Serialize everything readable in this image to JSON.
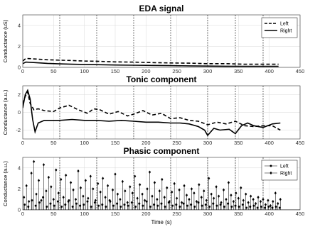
{
  "chart_data": [
    {
      "type": "line",
      "title": "EDA signal",
      "ylabel": "Conductance (uS)",
      "xlim": [
        0,
        450
      ],
      "ylim": [
        0,
        5
      ],
      "xticks": [
        "0",
        "50",
        "100",
        "150",
        "200",
        "250",
        "300",
        "350",
        "400",
        "450"
      ],
      "yticks": [
        "0",
        "2",
        "4"
      ],
      "ytick_values": [
        0,
        2,
        4
      ],
      "grid": true,
      "legend": "top-right",
      "vlines": [
        60,
        120,
        180,
        240,
        300,
        345,
        390
      ],
      "series": [
        {
          "name": "Left",
          "style": "dashed",
          "x": [
            0,
            5,
            20,
            40,
            60,
            80,
            100,
            120,
            150,
            180,
            210,
            240,
            270,
            300,
            330,
            360,
            390,
            415
          ],
          "y": [
            0.6,
            0.85,
            0.8,
            0.72,
            0.68,
            0.65,
            0.6,
            0.58,
            0.52,
            0.5,
            0.45,
            0.42,
            0.4,
            0.35,
            0.35,
            0.3,
            0.3,
            0.3
          ]
        },
        {
          "name": "Right",
          "style": "solid",
          "x": [
            0,
            5,
            20,
            40,
            60,
            80,
            100,
            120,
            150,
            180,
            210,
            240,
            270,
            300,
            330,
            360,
            390,
            415
          ],
          "y": [
            0.35,
            0.5,
            0.45,
            0.38,
            0.33,
            0.3,
            0.28,
            0.26,
            0.22,
            0.2,
            0.18,
            0.16,
            0.14,
            0.12,
            0.11,
            0.1,
            0.1,
            0.1
          ]
        }
      ]
    },
    {
      "type": "line",
      "title": "Tonic component",
      "ylabel": "Conductance (a.u.)",
      "xlim": [
        0,
        450
      ],
      "ylim": [
        -3,
        3
      ],
      "xticks": [
        "0",
        "50",
        "100",
        "150",
        "200",
        "250",
        "300",
        "350",
        "400",
        "450"
      ],
      "yticks": [
        "-2",
        "0",
        "2"
      ],
      "ytick_values": [
        -2,
        0,
        2
      ],
      "grid": true,
      "vlines": [
        60,
        120,
        180,
        240,
        300,
        345,
        390
      ],
      "series": [
        {
          "style": "dashed",
          "x": [
            0,
            4,
            8,
            12,
            18,
            25,
            35,
            50,
            60,
            75,
            90,
            105,
            115,
            125,
            140,
            155,
            170,
            180,
            195,
            210,
            225,
            240,
            255,
            270,
            285,
            300,
            315,
            330,
            345,
            360,
            375,
            390,
            405,
            418
          ],
          "y": [
            1.0,
            1.8,
            2.3,
            1.0,
            0.3,
            0.4,
            0.2,
            0.1,
            0.5,
            0.8,
            0.3,
            -0.1,
            0.4,
            0.3,
            -0.2,
            0.1,
            -0.4,
            -0.2,
            0.2,
            -0.3,
            -0.1,
            -0.7,
            -0.6,
            -0.9,
            -1.0,
            -1.4,
            -1.1,
            -1.3,
            -1.0,
            -1.5,
            -1.6,
            -1.5,
            -1.5,
            -2.0
          ]
        },
        {
          "style": "solid",
          "x": [
            0,
            4,
            8,
            12,
            16,
            20,
            25,
            35,
            50,
            60,
            80,
            100,
            120,
            140,
            160,
            180,
            200,
            220,
            240,
            255,
            270,
            285,
            295,
            300,
            310,
            320,
            335,
            345,
            355,
            365,
            375,
            390,
            405,
            418
          ],
          "y": [
            0.5,
            2.0,
            2.5,
            1.5,
            -0.8,
            -2.2,
            -1.2,
            -0.9,
            -0.9,
            -0.9,
            -0.8,
            -0.9,
            -0.9,
            -1.0,
            -0.9,
            -1.0,
            -1.1,
            -1.1,
            -1.2,
            -1.2,
            -1.3,
            -1.6,
            -2.0,
            -2.6,
            -1.8,
            -2.0,
            -1.9,
            -2.4,
            -1.5,
            -1.2,
            -1.5,
            -1.7,
            -1.3,
            -1.2
          ]
        }
      ]
    },
    {
      "type": "line",
      "title": "Phasic component",
      "ylabel": "Conductance (a.u.)",
      "xlabel": "Time (s)",
      "xlim": [
        0,
        450
      ],
      "ylim": [
        0,
        5
      ],
      "xticks": [
        "0",
        "50",
        "100",
        "150",
        "200",
        "250",
        "300",
        "350",
        "400",
        "450"
      ],
      "yticks": [
        "0",
        "2",
        "4"
      ],
      "ytick_values": [
        0,
        2,
        4
      ],
      "grid": true,
      "legend": "top-right",
      "vlines": [
        60,
        120,
        180,
        240,
        300,
        345,
        390
      ],
      "series": [
        {
          "name": "Left",
          "style": "dot-stem",
          "x": [
            3,
            9,
            15,
            21,
            27,
            33,
            39,
            45,
            51,
            57,
            63,
            69,
            75,
            81,
            87,
            93,
            99,
            105,
            111,
            117,
            123,
            129,
            135,
            141,
            147,
            153,
            159,
            165,
            171,
            177,
            183,
            189,
            195,
            201,
            207,
            213,
            219,
            225,
            231,
            237,
            243,
            249,
            255,
            261,
            267,
            273,
            279,
            285,
            291,
            297,
            303,
            309,
            315,
            321,
            327,
            333,
            339,
            345,
            351,
            357,
            363,
            369,
            375,
            381,
            387,
            393,
            399,
            405,
            411,
            417
          ],
          "y": [
            0.5,
            0.3,
            0.9,
            0.4,
            0.7,
            1.2,
            0.3,
            0.6,
            0.4,
            0.8,
            0.3,
            0.5,
            0.9,
            0.3,
            0.6,
            0.4,
            0.5,
            0.8,
            0.3,
            0.7,
            0.4,
            0.5,
            0.3,
            0.9,
            0.4,
            0.6,
            0.3,
            0.5,
            0.4,
            0.7,
            0.3,
            0.6,
            0.4,
            0.8,
            0.3,
            0.5,
            0.4,
            0.6,
            0.3,
            0.7,
            0.4,
            0.5,
            0.3,
            0.6,
            0.4,
            0.5,
            0.3,
            0.7,
            0.4,
            0.5,
            0.3,
            0.6,
            0.4,
            0.5,
            0.3,
            0.6,
            0.3,
            0.4,
            0.3,
            0.5,
            0.2,
            0.3,
            0.4,
            0.2,
            0.3,
            0.2,
            0.3,
            0.2,
            0.3,
            0.2
          ]
        },
        {
          "name": "Right",
          "style": "diamond-stem",
          "x": [
            2,
            6,
            10,
            14,
            18,
            22,
            26,
            30,
            34,
            38,
            42,
            46,
            50,
            54,
            58,
            62,
            66,
            70,
            74,
            78,
            82,
            86,
            90,
            94,
            98,
            102,
            106,
            110,
            114,
            118,
            122,
            126,
            130,
            134,
            138,
            142,
            146,
            150,
            154,
            158,
            162,
            166,
            170,
            174,
            178,
            182,
            186,
            190,
            194,
            198,
            202,
            206,
            210,
            214,
            218,
            222,
            226,
            230,
            234,
            238,
            242,
            246,
            250,
            254,
            258,
            262,
            266,
            270,
            274,
            278,
            282,
            286,
            290,
            294,
            298,
            302,
            306,
            310,
            314,
            318,
            322,
            326,
            330,
            334,
            338,
            342,
            346,
            350,
            354,
            358,
            362,
            366,
            370,
            374,
            378,
            382,
            386,
            390,
            394,
            398,
            402,
            406,
            410,
            414,
            418
          ],
          "y": [
            1.2,
            2.3,
            0.8,
            3.5,
            4.6,
            1.5,
            2.8,
            0.9,
            4.3,
            1.8,
            3.1,
            2.2,
            1.0,
            3.8,
            1.6,
            2.9,
            1.2,
            3.3,
            0.8,
            2.6,
            1.9,
            1.0,
            3.7,
            2.1,
            1.3,
            2.8,
            1.1,
            3.2,
            2.0,
            0.9,
            2.5,
            1.7,
            3.0,
            1.2,
            2.3,
            0.8,
            1.9,
            3.4,
            1.5,
            1.0,
            2.7,
            1.8,
            0.7,
            2.2,
            1.6,
            3.2,
            1.1,
            2.4,
            1.5,
            0.9,
            2.0,
            3.6,
            1.3,
            2.6,
            1.0,
            1.8,
            2.9,
            1.2,
            2.1,
            0.8,
            1.7,
            2.5,
            1.1,
            1.9,
            0.7,
            2.3,
            1.4,
            1.0,
            2.0,
            1.6,
            0.8,
            2.4,
            1.2,
            1.8,
            0.9,
            3.0,
            1.5,
            1.1,
            2.2,
            1.3,
            0.7,
            1.9,
            1.0,
            2.6,
            1.4,
            0.8,
            1.6,
            1.1,
            2.1,
            0.9,
            1.5,
            0.7,
            1.3,
            1.0,
            0.6,
            1.2,
            0.8,
            1.0,
            0.5,
            0.9,
            0.4,
            0.8,
            1.6,
            0.6,
            1.0
          ]
        }
      ]
    }
  ]
}
